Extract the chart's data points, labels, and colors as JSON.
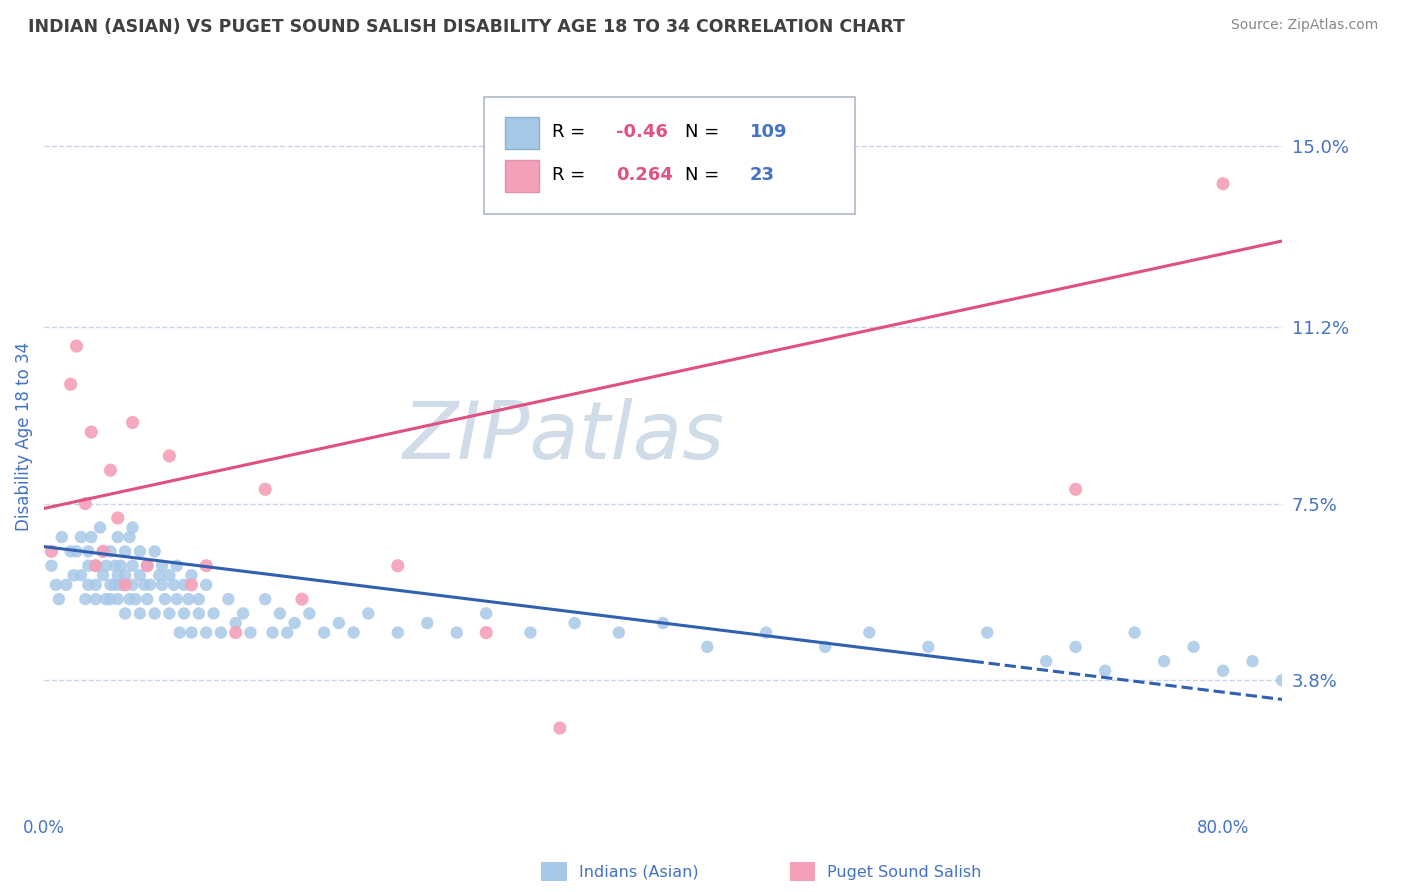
{
  "title": "INDIAN (ASIAN) VS PUGET SOUND SALISH DISABILITY AGE 18 TO 34 CORRELATION CHART",
  "source": "Source: ZipAtlas.com",
  "ylabel": "Disability Age 18 to 34",
  "xlim": [
    0.0,
    0.84
  ],
  "ylim": [
    0.01,
    0.168
  ],
  "yticks": [
    0.038,
    0.075,
    0.112,
    0.15
  ],
  "ytick_labels": [
    "3.8%",
    "7.5%",
    "11.2%",
    "15.0%"
  ],
  "xtick_positions": [
    0.0,
    0.8
  ],
  "xtick_labels": [
    "0.0%",
    "80.0%"
  ],
  "blue_R": -0.46,
  "blue_N": 109,
  "pink_R": 0.264,
  "pink_N": 23,
  "blue_color": "#a8c8e8",
  "pink_color": "#f4a0b8",
  "blue_line_color": "#3060b0",
  "pink_line_color": "#e05080",
  "axis_label_color": "#4472c4",
  "title_color": "#404040",
  "source_color": "#888888",
  "grid_color": "#c8d4e8",
  "background_color": "#ffffff",
  "blue_trend_y_start": 0.066,
  "blue_trend_y_end": 0.034,
  "blue_dash_split": 0.63,
  "pink_trend_y_start": 0.074,
  "pink_trend_y_end": 0.13,
  "watermark_text": "ZIPatlas",
  "watermark_color": "#d0dce8",
  "legend_R_color": "#e05080",
  "legend_N_color": "#4472c4",
  "legend_text_color": "#000000",
  "blue_scatter_x": [
    0.005,
    0.008,
    0.01,
    0.012,
    0.015,
    0.018,
    0.02,
    0.022,
    0.025,
    0.025,
    0.028,
    0.03,
    0.03,
    0.03,
    0.032,
    0.035,
    0.035,
    0.035,
    0.038,
    0.04,
    0.04,
    0.042,
    0.042,
    0.045,
    0.045,
    0.045,
    0.048,
    0.048,
    0.05,
    0.05,
    0.05,
    0.052,
    0.052,
    0.055,
    0.055,
    0.055,
    0.058,
    0.058,
    0.06,
    0.06,
    0.06,
    0.062,
    0.065,
    0.065,
    0.065,
    0.068,
    0.07,
    0.07,
    0.072,
    0.075,
    0.075,
    0.078,
    0.08,
    0.08,
    0.082,
    0.085,
    0.085,
    0.088,
    0.09,
    0.09,
    0.092,
    0.095,
    0.095,
    0.098,
    0.1,
    0.1,
    0.105,
    0.105,
    0.11,
    0.11,
    0.115,
    0.12,
    0.125,
    0.13,
    0.135,
    0.14,
    0.15,
    0.155,
    0.16,
    0.165,
    0.17,
    0.18,
    0.19,
    0.2,
    0.21,
    0.22,
    0.24,
    0.26,
    0.28,
    0.3,
    0.33,
    0.36,
    0.39,
    0.42,
    0.45,
    0.49,
    0.53,
    0.56,
    0.6,
    0.64,
    0.68,
    0.7,
    0.72,
    0.74,
    0.76,
    0.78,
    0.8,
    0.82,
    0.84
  ],
  "blue_scatter_y": [
    0.062,
    0.058,
    0.055,
    0.068,
    0.058,
    0.065,
    0.06,
    0.065,
    0.06,
    0.068,
    0.055,
    0.065,
    0.058,
    0.062,
    0.068,
    0.058,
    0.062,
    0.055,
    0.07,
    0.06,
    0.065,
    0.055,
    0.062,
    0.058,
    0.065,
    0.055,
    0.062,
    0.058,
    0.068,
    0.06,
    0.055,
    0.062,
    0.058,
    0.065,
    0.06,
    0.052,
    0.068,
    0.055,
    0.062,
    0.058,
    0.07,
    0.055,
    0.06,
    0.065,
    0.052,
    0.058,
    0.062,
    0.055,
    0.058,
    0.065,
    0.052,
    0.06,
    0.058,
    0.062,
    0.055,
    0.06,
    0.052,
    0.058,
    0.055,
    0.062,
    0.048,
    0.058,
    0.052,
    0.055,
    0.06,
    0.048,
    0.055,
    0.052,
    0.058,
    0.048,
    0.052,
    0.048,
    0.055,
    0.05,
    0.052,
    0.048,
    0.055,
    0.048,
    0.052,
    0.048,
    0.05,
    0.052,
    0.048,
    0.05,
    0.048,
    0.052,
    0.048,
    0.05,
    0.048,
    0.052,
    0.048,
    0.05,
    0.048,
    0.05,
    0.045,
    0.048,
    0.045,
    0.048,
    0.045,
    0.048,
    0.042,
    0.045,
    0.04,
    0.048,
    0.042,
    0.045,
    0.04,
    0.042,
    0.038
  ],
  "pink_scatter_x": [
    0.005,
    0.018,
    0.022,
    0.028,
    0.032,
    0.035,
    0.04,
    0.045,
    0.05,
    0.055,
    0.06,
    0.07,
    0.085,
    0.1,
    0.11,
    0.13,
    0.15,
    0.175,
    0.24,
    0.3,
    0.35,
    0.7,
    0.8
  ],
  "pink_scatter_y": [
    0.065,
    0.1,
    0.108,
    0.075,
    0.09,
    0.062,
    0.065,
    0.082,
    0.072,
    0.058,
    0.092,
    0.062,
    0.085,
    0.058,
    0.062,
    0.048,
    0.078,
    0.055,
    0.062,
    0.048,
    0.028,
    0.078,
    0.142
  ]
}
